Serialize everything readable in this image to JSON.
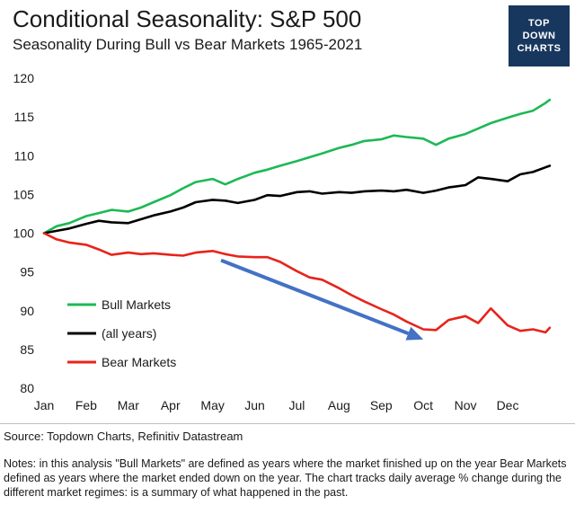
{
  "header": {
    "title": "Conditional Seasonality: S&P 500",
    "subtitle": "Seasonality During Bull vs Bear Markets 1965-2021",
    "logo_lines": [
      "TOP",
      "DOWN",
      "CHARTS"
    ]
  },
  "footer": {
    "source": "Source: Topdown Charts, Refinitiv Datastream",
    "notes": "Notes: in this analysis \"Bull Markets\" are defined as years where the market finished up on the year Bear Markets defined as years where the market ended down on the year.  The chart tracks daily average % change during the different market regimes: is a summary of what happened in the past."
  },
  "colors": {
    "bull": "#1db954",
    "all": "#000000",
    "bear": "#e8231b",
    "arrow": "#4472c4",
    "logo_bg": "#17375e"
  },
  "chart_data": {
    "type": "line",
    "categories": [
      "Jan",
      "Feb",
      "Mar",
      "Apr",
      "May",
      "Jun",
      "Jul",
      "Aug",
      "Sep",
      "Oct",
      "Nov",
      "Dec"
    ],
    "yticks": [
      80,
      85,
      90,
      95,
      100,
      105,
      110,
      115,
      120
    ],
    "ylim": [
      80,
      120
    ],
    "xlim": [
      0,
      12.3
    ],
    "grid": false,
    "legend_position": "bottom-left",
    "series": [
      {
        "name": "Bull Markets",
        "color": "#1db954",
        "x": [
          0,
          0.3,
          0.6,
          1.0,
          1.3,
          1.6,
          2.0,
          2.3,
          2.6,
          3.0,
          3.3,
          3.6,
          4.0,
          4.3,
          4.6,
          5.0,
          5.3,
          5.6,
          6.0,
          6.3,
          6.6,
          7.0,
          7.3,
          7.6,
          8.0,
          8.3,
          8.6,
          9.0,
          9.3,
          9.6,
          10.0,
          10.3,
          10.6,
          11.0,
          11.3,
          11.6,
          11.9,
          12.0
        ],
        "y": [
          100,
          100.9,
          101.3,
          102.2,
          102.6,
          103.0,
          102.8,
          103.3,
          104.0,
          104.9,
          105.8,
          106.6,
          107.0,
          106.3,
          107.0,
          107.8,
          108.2,
          108.7,
          109.3,
          109.8,
          110.3,
          111.0,
          111.4,
          111.9,
          112.1,
          112.6,
          112.4,
          112.2,
          111.4,
          112.2,
          112.8,
          113.5,
          114.2,
          114.9,
          115.4,
          115.8,
          116.8,
          117.2
        ]
      },
      {
        "name": "(all years)",
        "color": "#000000",
        "x": [
          0,
          0.3,
          0.6,
          1.0,
          1.3,
          1.6,
          2.0,
          2.3,
          2.6,
          3.0,
          3.3,
          3.6,
          4.0,
          4.3,
          4.6,
          5.0,
          5.3,
          5.6,
          6.0,
          6.3,
          6.6,
          7.0,
          7.3,
          7.6,
          8.0,
          8.3,
          8.6,
          9.0,
          9.3,
          9.6,
          10.0,
          10.3,
          10.6,
          11.0,
          11.3,
          11.6,
          11.9,
          12.0
        ],
        "y": [
          100,
          100.3,
          100.6,
          101.2,
          101.6,
          101.4,
          101.3,
          101.8,
          102.3,
          102.8,
          103.3,
          104.0,
          104.3,
          104.2,
          103.9,
          104.3,
          104.9,
          104.8,
          105.3,
          105.4,
          105.1,
          105.3,
          105.2,
          105.4,
          105.5,
          105.4,
          105.6,
          105.2,
          105.5,
          105.9,
          106.2,
          107.2,
          107.0,
          106.7,
          107.6,
          107.9,
          108.5,
          108.7
        ]
      },
      {
        "name": "Bear Markets",
        "color": "#e8231b",
        "x": [
          0,
          0.3,
          0.6,
          1.0,
          1.3,
          1.6,
          2.0,
          2.3,
          2.6,
          3.0,
          3.3,
          3.6,
          4.0,
          4.3,
          4.6,
          5.0,
          5.3,
          5.6,
          6.0,
          6.3,
          6.6,
          7.0,
          7.3,
          7.6,
          8.0,
          8.3,
          8.6,
          9.0,
          9.3,
          9.6,
          10.0,
          10.3,
          10.6,
          11.0,
          11.3,
          11.6,
          11.9,
          12.0
        ],
        "y": [
          100,
          99.2,
          98.8,
          98.5,
          97.9,
          97.2,
          97.5,
          97.3,
          97.4,
          97.2,
          97.1,
          97.5,
          97.7,
          97.3,
          97.0,
          96.9,
          96.9,
          96.3,
          95.1,
          94.3,
          94.0,
          92.9,
          92.0,
          91.2,
          90.2,
          89.5,
          88.6,
          87.6,
          87.5,
          88.8,
          89.3,
          88.4,
          90.3,
          88.1,
          87.4,
          87.6,
          87.2,
          87.8
        ]
      }
    ],
    "annotation_arrow": {
      "from": {
        "x": 4.2,
        "y": 96.5
      },
      "to": {
        "x": 9.0,
        "y": 86.3
      },
      "color": "#4472c4"
    }
  }
}
